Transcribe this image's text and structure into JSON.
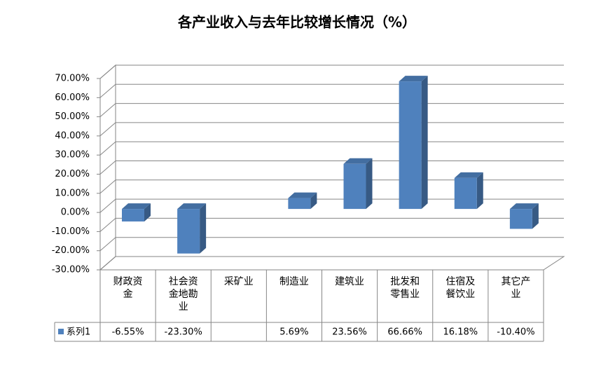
{
  "chart_data": {
    "type": "bar",
    "title": "各产业收入与去年比较增长情况（%）",
    "categories": [
      "财政资金",
      "社会资金地勘业",
      "采矿业",
      "制造业",
      "建筑业",
      "批发和零售业",
      "住宿及餐饮业",
      "其它产业"
    ],
    "series": [
      {
        "name": "系列1",
        "color": "#4f81bd",
        "values": [
          -6.55,
          -23.3,
          null,
          5.69,
          23.56,
          66.66,
          16.18,
          -10.4
        ],
        "value_labels": [
          "-6.55%",
          "-23.30%",
          null,
          "5.69%",
          "23.56%",
          "66.66%",
          "16.18%",
          "-10.40%"
        ]
      }
    ],
    "ylim": [
      -30,
      70
    ],
    "yticks": [
      {
        "value": -30,
        "label": "-30.00%"
      },
      {
        "value": -20,
        "label": "-20.00%"
      },
      {
        "value": -10,
        "label": "-10.00%"
      },
      {
        "value": 0,
        "label": "0.00%"
      },
      {
        "value": 10,
        "label": "10.00%"
      },
      {
        "value": 20,
        "label": "20.00%"
      },
      {
        "value": 30,
        "label": "30.00%"
      },
      {
        "value": 40,
        "label": "40.00%"
      },
      {
        "value": 50,
        "label": "50.00%"
      },
      {
        "value": 60,
        "label": "60.00%"
      },
      {
        "value": 70,
        "label": "70.00%"
      }
    ],
    "grid": true
  }
}
